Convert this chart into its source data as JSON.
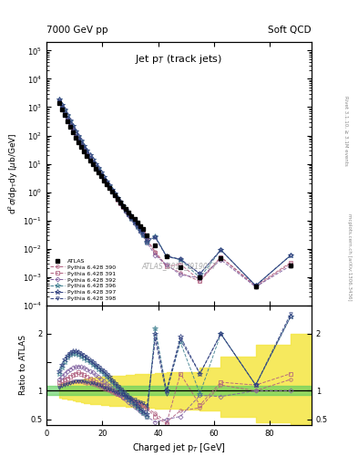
{
  "title_left": "7000 GeV pp",
  "title_right": "Soft QCD",
  "plot_title": "Jet p$_T$ (track jets)",
  "ylabel_main": "d$^2\\sigma$/dp$_{T}$dy [\\mu b/GeV]",
  "ylabel_ratio": "Ratio to ATLAS",
  "xlabel": "Charged jet p$_T$ [GeV]",
  "watermark": "ATLAS_2011_I919017",
  "atlas_pt": [
    4.5,
    5.5,
    6.5,
    7.5,
    8.5,
    9.5,
    10.5,
    11.5,
    12.5,
    13.5,
    14.5,
    15.5,
    16.5,
    17.5,
    18.5,
    19.5,
    20.5,
    21.5,
    22.5,
    23.5,
    24.5,
    25.5,
    26.5,
    27.5,
    28.5,
    29.5,
    30.5,
    31.5,
    32.5,
    33.5,
    34.5,
    36.0,
    39.0,
    43.0,
    48.0,
    55.0,
    62.5,
    75.0,
    87.5
  ],
  "atlas_vals": [
    1400,
    850,
    520,
    320,
    200,
    130,
    85,
    57,
    39,
    27,
    19,
    13.5,
    9.5,
    6.8,
    4.9,
    3.6,
    2.6,
    1.9,
    1.4,
    1.05,
    0.78,
    0.58,
    0.44,
    0.33,
    0.25,
    0.19,
    0.145,
    0.11,
    0.085,
    0.064,
    0.05,
    0.03,
    0.013,
    0.0055,
    0.0022,
    0.001,
    0.0045,
    0.00045,
    0.0025
  ],
  "atlas_yerr": [
    80,
    50,
    30,
    18,
    12,
    8,
    5,
    3.5,
    2.4,
    1.7,
    1.2,
    0.85,
    0.6,
    0.43,
    0.31,
    0.23,
    0.17,
    0.12,
    0.09,
    0.067,
    0.05,
    0.037,
    0.028,
    0.021,
    0.016,
    0.012,
    0.009,
    0.007,
    0.0055,
    0.0041,
    0.0032,
    0.0019,
    0.0008,
    0.00035,
    0.00014,
    7e-05,
    0.0004,
    5e-05,
    0.0003
  ],
  "colors": {
    "390": "#b06080",
    "391": "#b06080",
    "392": "#8060a0",
    "396": "#408090",
    "397": "#304080",
    "398": "#304080"
  },
  "markers": {
    "390": "o",
    "391": "s",
    "392": "D",
    "396": "*",
    "397": "*",
    "398": "v"
  },
  "ratio_390": [
    1.1,
    1.12,
    1.13,
    1.14,
    1.15,
    1.16,
    1.17,
    1.17,
    1.16,
    1.15,
    1.14,
    1.13,
    1.12,
    1.1,
    1.08,
    1.06,
    1.04,
    1.02,
    1.0,
    0.98,
    0.96,
    0.94,
    0.92,
    0.9,
    0.88,
    0.86,
    0.84,
    0.82,
    0.8,
    0.78,
    0.75,
    0.7,
    0.6,
    0.45,
    0.65,
    0.7,
    1.1,
    1.0,
    1.2
  ],
  "ratio_391": [
    1.15,
    1.18,
    1.2,
    1.22,
    1.25,
    1.28,
    1.3,
    1.32,
    1.3,
    1.28,
    1.25,
    1.22,
    1.18,
    1.15,
    1.12,
    1.1,
    1.08,
    1.05,
    1.02,
    1.0,
    0.97,
    0.95,
    0.93,
    0.9,
    0.88,
    0.85,
    0.83,
    0.8,
    0.78,
    0.76,
    0.73,
    0.68,
    0.55,
    0.42,
    1.3,
    0.75,
    1.15,
    1.1,
    1.3
  ],
  "ratio_392": [
    1.2,
    1.25,
    1.3,
    1.35,
    1.38,
    1.4,
    1.42,
    1.43,
    1.42,
    1.4,
    1.38,
    1.35,
    1.32,
    1.28,
    1.24,
    1.2,
    1.16,
    1.12,
    1.08,
    1.04,
    1.0,
    0.96,
    0.92,
    0.88,
    0.84,
    0.8,
    0.76,
    0.72,
    0.68,
    0.64,
    0.6,
    0.55,
    0.45,
    0.5,
    0.55,
    0.92,
    0.9,
    1.0,
    1.0
  ],
  "ratio_396": [
    1.3,
    1.4,
    1.5,
    1.58,
    1.63,
    1.65,
    1.65,
    1.63,
    1.6,
    1.57,
    1.54,
    1.5,
    1.46,
    1.42,
    1.38,
    1.34,
    1.3,
    1.25,
    1.2,
    1.15,
    1.1,
    1.05,
    1.0,
    0.95,
    0.9,
    0.85,
    0.8,
    0.75,
    0.7,
    0.65,
    0.6,
    0.55,
    2.1,
    1.0,
    1.85,
    0.95,
    2.0,
    1.1,
    2.3
  ],
  "ratio_397": [
    1.35,
    1.45,
    1.55,
    1.62,
    1.67,
    1.7,
    1.7,
    1.68,
    1.65,
    1.62,
    1.58,
    1.54,
    1.5,
    1.46,
    1.42,
    1.38,
    1.34,
    1.29,
    1.24,
    1.19,
    1.14,
    1.09,
    1.04,
    0.99,
    0.94,
    0.89,
    0.84,
    0.79,
    0.74,
    0.69,
    0.64,
    0.59,
    2.0,
    1.0,
    1.95,
    1.3,
    2.0,
    1.1,
    2.3
  ],
  "ratio_398": [
    1.05,
    1.08,
    1.1,
    1.12,
    1.14,
    1.15,
    1.16,
    1.17,
    1.17,
    1.16,
    1.15,
    1.14,
    1.13,
    1.12,
    1.1,
    1.08,
    1.06,
    1.04,
    1.02,
    1.0,
    0.98,
    0.96,
    0.94,
    0.92,
    0.9,
    0.88,
    0.86,
    0.84,
    0.82,
    0.8,
    0.78,
    0.73,
    1.9,
    0.95,
    1.9,
    1.3,
    2.0,
    1.1,
    2.35
  ],
  "legend_entries": [
    "ATLAS",
    "Pythia 6.428 390",
    "Pythia 6.428 391",
    "Pythia 6.428 392",
    "Pythia 6.428 396",
    "Pythia 6.428 397",
    "Pythia 6.428 398"
  ],
  "ylim_main": [
    0.0001,
    200000.0
  ],
  "ylim_ratio": [
    0.4,
    2.5
  ],
  "xlim": [
    0,
    95
  ],
  "yellow_x": [
    4.5,
    5.5,
    6.5,
    7.5,
    8.5,
    9.5,
    10.5,
    11.5,
    12.5,
    13.5,
    14.5,
    15.5,
    16.5,
    17.5,
    18.5,
    19.5,
    20.5,
    21.5,
    22.5,
    23.5,
    24.5,
    25.5,
    26.5,
    27.5,
    28.5,
    29.5,
    30.5,
    31.5,
    32.5,
    33.5,
    34.5,
    36.0,
    39.0,
    43.0,
    48.0,
    55.0,
    62.5,
    75.0,
    87.5,
    95.0
  ],
  "yellow_low": [
    0.88,
    0.87,
    0.86,
    0.85,
    0.84,
    0.83,
    0.82,
    0.81,
    0.8,
    0.79,
    0.78,
    0.77,
    0.77,
    0.76,
    0.76,
    0.75,
    0.75,
    0.75,
    0.74,
    0.74,
    0.74,
    0.73,
    0.73,
    0.73,
    0.72,
    0.72,
    0.72,
    0.71,
    0.71,
    0.71,
    0.7,
    0.7,
    0.69,
    0.68,
    0.67,
    0.66,
    0.55,
    0.45,
    0.4,
    0.4
  ],
  "yellow_high": [
    1.12,
    1.13,
    1.14,
    1.15,
    1.16,
    1.17,
    1.18,
    1.19,
    1.2,
    1.21,
    1.22,
    1.23,
    1.23,
    1.24,
    1.24,
    1.25,
    1.25,
    1.25,
    1.26,
    1.26,
    1.26,
    1.27,
    1.27,
    1.27,
    1.28,
    1.28,
    1.28,
    1.29,
    1.29,
    1.29,
    1.3,
    1.3,
    1.31,
    1.32,
    1.33,
    1.4,
    1.6,
    1.8,
    2.0,
    2.0
  ],
  "green_low": 0.92,
  "green_high": 1.08
}
